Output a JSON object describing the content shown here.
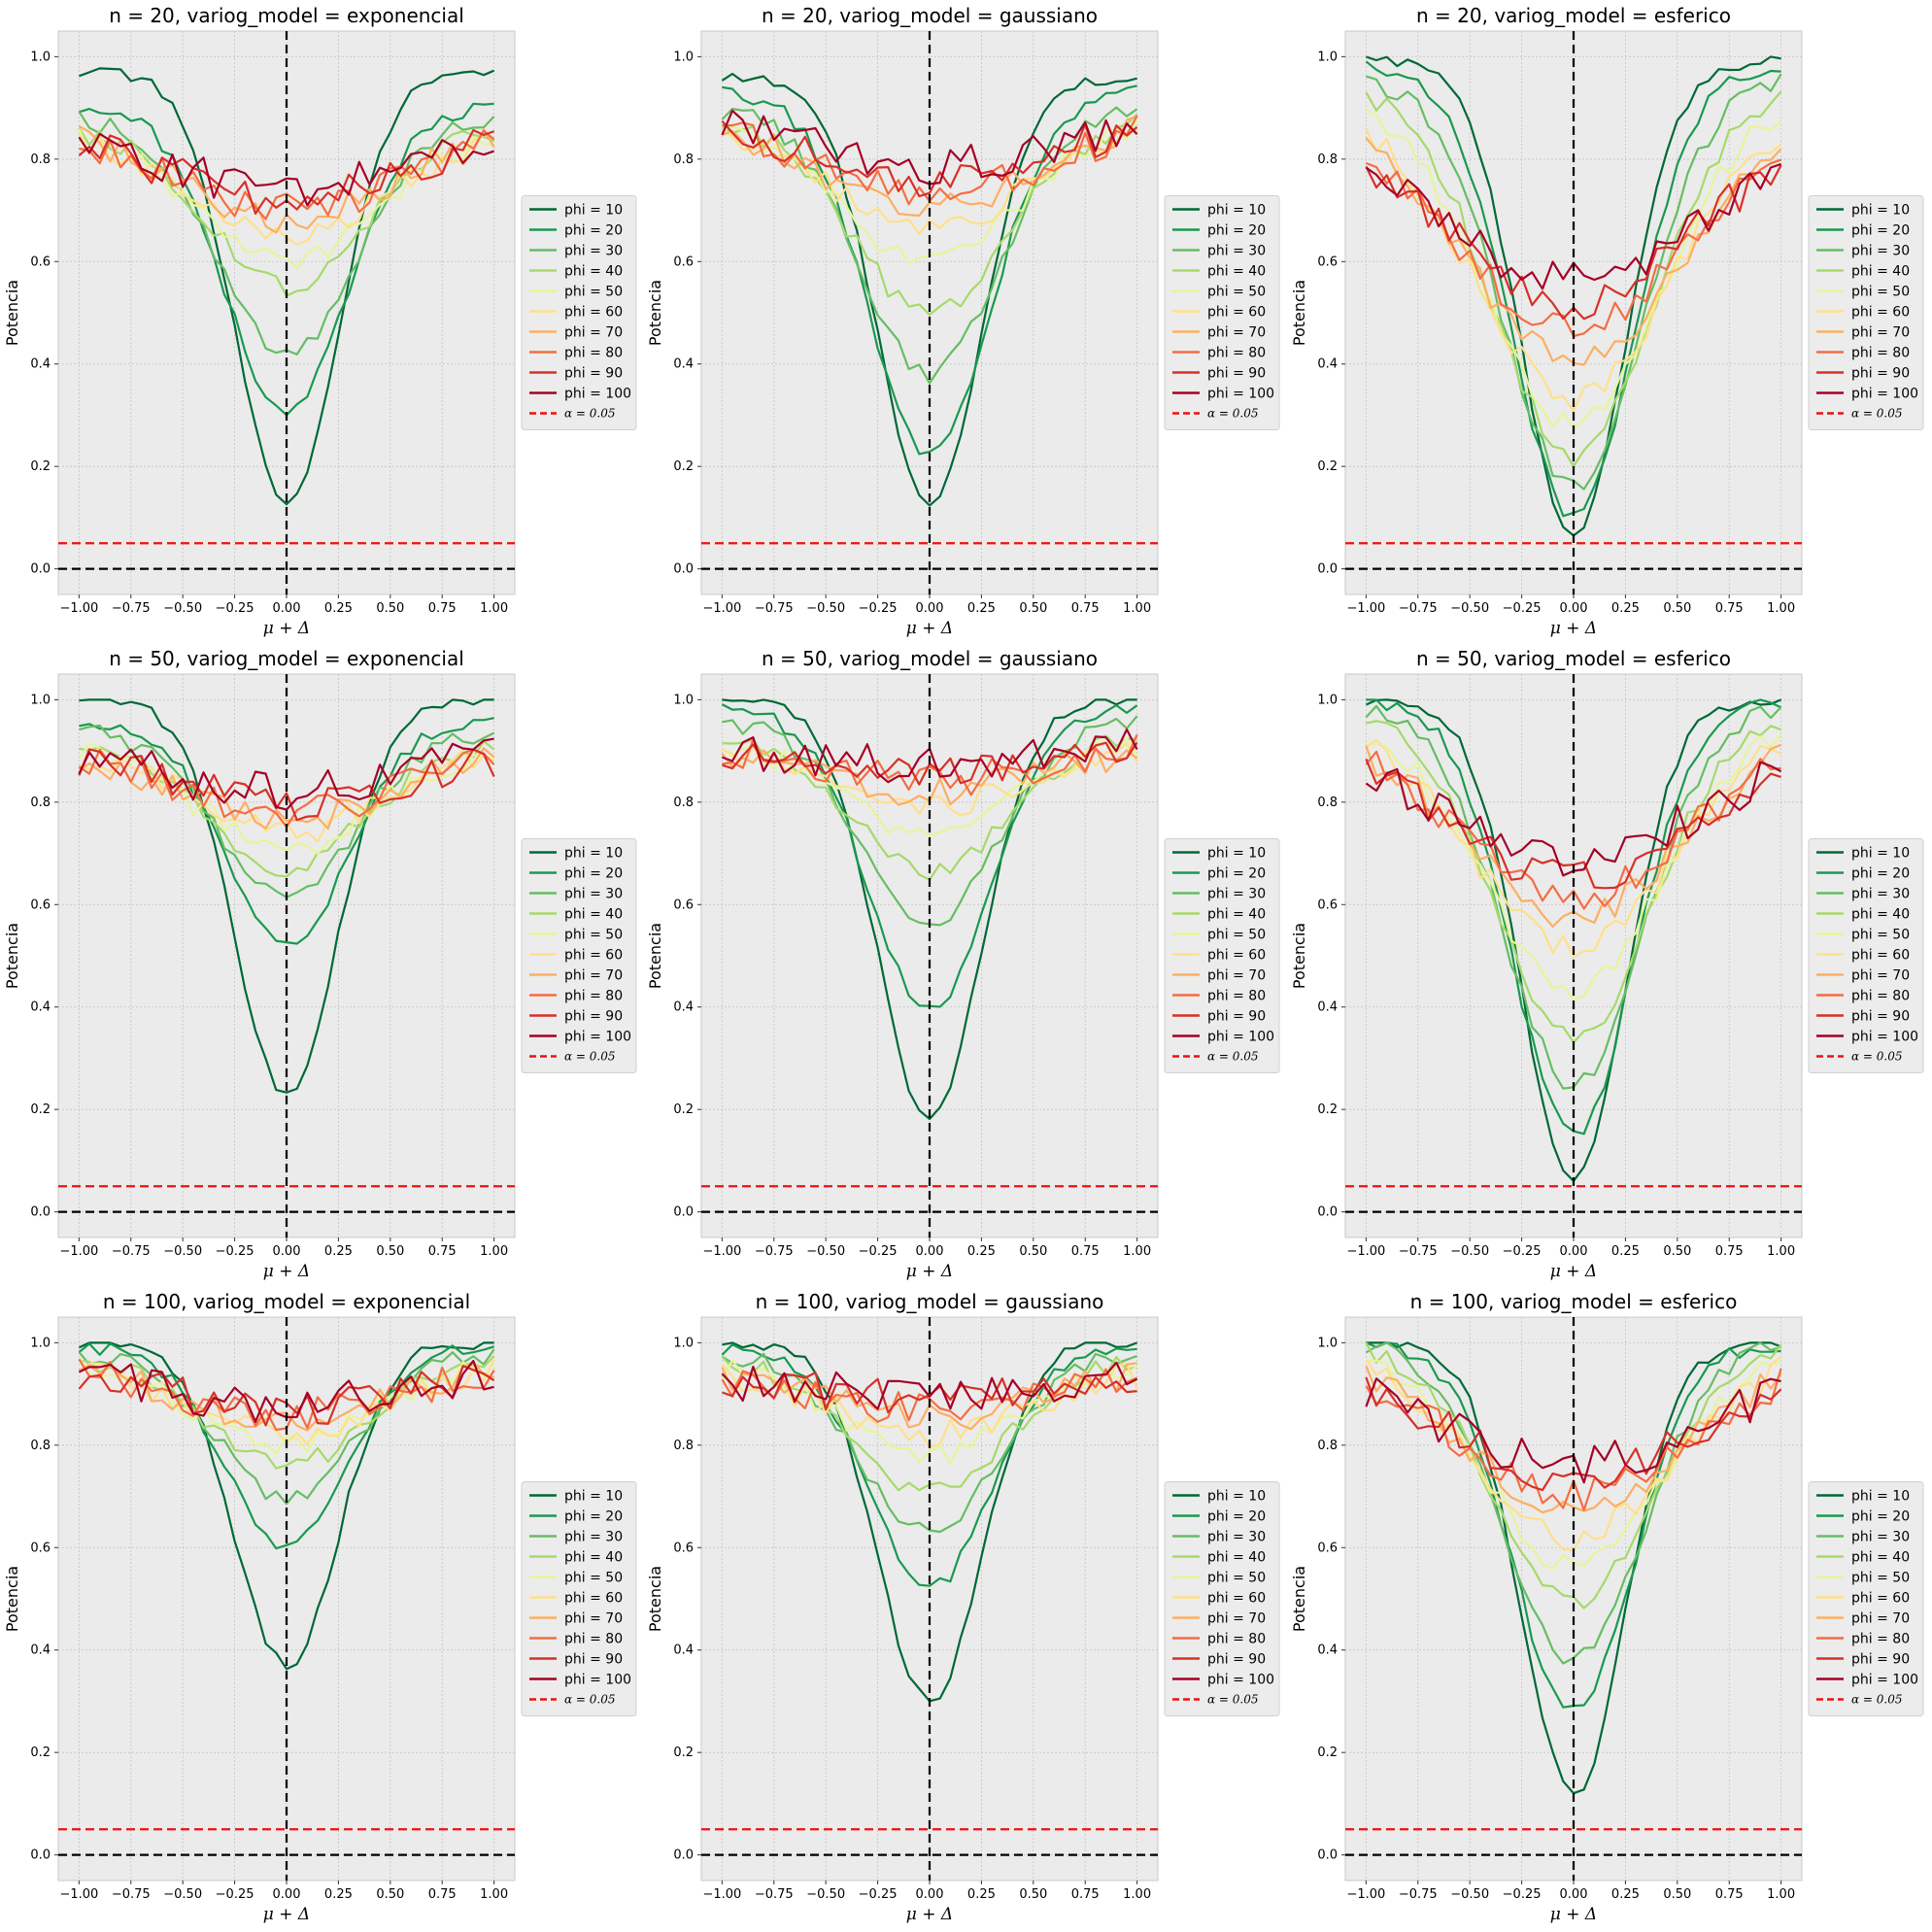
{
  "figure": {
    "ylabel": "Potencia",
    "xlabel": "μ + Δ"
  },
  "chart_data": {
    "type": "line",
    "layout": "3x3 grid of line charts",
    "x_range": [
      -1.0,
      1.0
    ],
    "x_step": 0.05,
    "xlim": [
      -1.1,
      1.1
    ],
    "ylim": [
      -0.05,
      1.05
    ],
    "xticks": [
      -1.0,
      -0.75,
      -0.5,
      -0.25,
      0.0,
      0.25,
      0.5,
      0.75,
      1.0
    ],
    "xtick_labels": [
      "−1.00",
      "−0.75",
      "−0.50",
      "−0.25",
      "0.00",
      "0.25",
      "0.50",
      "0.75",
      "1.00"
    ],
    "yticks": [
      0.0,
      0.2,
      0.4,
      0.6,
      0.8,
      1.0
    ],
    "ytick_labels": [
      "0.0",
      "0.2",
      "0.4",
      "0.6",
      "0.8",
      "1.0"
    ],
    "grid": true,
    "legend_position": "outside right, vertically centered",
    "alpha_line": {
      "y": 0.05,
      "label": "α = 0.05",
      "color": "#ee1111",
      "style": "dashed"
    },
    "reference_lines": [
      {
        "orientation": "horizontal",
        "value": 0.0,
        "color": "#000000",
        "style": "dashed"
      },
      {
        "orientation": "vertical",
        "value": 0.0,
        "color": "#000000",
        "style": "dashed"
      }
    ],
    "series_names": [
      "phi = 10",
      "phi = 20",
      "phi = 30",
      "phi = 40",
      "phi = 50",
      "phi = 60",
      "phi = 70",
      "phi = 80",
      "phi = 90",
      "phi = 100"
    ],
    "series_colors": [
      "#006837",
      "#1a9850",
      "#66bd63",
      "#a6d96a",
      "#e6f598",
      "#fee08b",
      "#fdae61",
      "#f46d43",
      "#d73027",
      "#a50026"
    ],
    "panels": [
      {
        "title": "n = 20, variog_model = exponencial",
        "min_power": [
          0.13,
          0.3,
          0.42,
          0.55,
          0.6,
          0.65,
          0.68,
          0.7,
          0.72,
          0.74
        ],
        "edge_power": [
          0.97,
          0.9,
          0.88,
          0.86,
          0.85,
          0.85,
          0.86,
          0.86,
          0.87,
          0.88
        ]
      },
      {
        "title": "n = 20, variog_model = gaussiano",
        "min_power": [
          0.12,
          0.22,
          0.38,
          0.5,
          0.6,
          0.66,
          0.7,
          0.73,
          0.76,
          0.79
        ],
        "edge_power": [
          0.96,
          0.93,
          0.9,
          0.88,
          0.87,
          0.87,
          0.88,
          0.88,
          0.89,
          0.89
        ]
      },
      {
        "title": "n = 20, variog_model = esferico",
        "min_power": [
          0.06,
          0.1,
          0.16,
          0.22,
          0.28,
          0.33,
          0.4,
          0.47,
          0.52,
          0.56
        ],
        "edge_power": [
          0.99,
          0.98,
          0.96,
          0.94,
          0.92,
          0.9,
          0.89,
          0.88,
          0.87,
          0.85
        ]
      },
      {
        "title": "n = 50, variog_model = exponencial",
        "min_power": [
          0.23,
          0.52,
          0.62,
          0.67,
          0.71,
          0.74,
          0.76,
          0.78,
          0.8,
          0.82
        ],
        "edge_power": [
          1.0,
          0.96,
          0.94,
          0.92,
          0.91,
          0.91,
          0.91,
          0.91,
          0.91,
          0.92
        ]
      },
      {
        "title": "n = 50, variog_model = gaussiano",
        "min_power": [
          0.18,
          0.4,
          0.57,
          0.66,
          0.74,
          0.79,
          0.82,
          0.84,
          0.85,
          0.87
        ],
        "edge_power": [
          1.0,
          0.98,
          0.96,
          0.94,
          0.92,
          0.91,
          0.91,
          0.92,
          0.92,
          0.92
        ]
      },
      {
        "title": "n = 50, variog_model = esferico",
        "min_power": [
          0.06,
          0.15,
          0.25,
          0.34,
          0.43,
          0.51,
          0.57,
          0.61,
          0.65,
          0.69
        ],
        "edge_power": [
          1.0,
          1.0,
          0.99,
          0.98,
          0.96,
          0.95,
          0.94,
          0.94,
          0.93,
          0.93
        ]
      },
      {
        "title": "n = 100, variog_model = exponencial",
        "min_power": [
          0.37,
          0.6,
          0.7,
          0.76,
          0.8,
          0.82,
          0.84,
          0.86,
          0.87,
          0.88
        ],
        "edge_power": [
          1.0,
          0.99,
          0.98,
          0.97,
          0.96,
          0.96,
          0.96,
          0.96,
          0.96,
          0.96
        ]
      },
      {
        "title": "n = 100, variog_model = gaussiano",
        "min_power": [
          0.3,
          0.52,
          0.63,
          0.71,
          0.78,
          0.82,
          0.85,
          0.87,
          0.89,
          0.9
        ],
        "edge_power": [
          1.0,
          0.99,
          0.98,
          0.97,
          0.96,
          0.95,
          0.95,
          0.94,
          0.94,
          0.94
        ]
      },
      {
        "title": "n = 100, variog_model = esferico",
        "min_power": [
          0.12,
          0.28,
          0.38,
          0.49,
          0.56,
          0.62,
          0.67,
          0.7,
          0.74,
          0.76
        ],
        "edge_power": [
          1.0,
          1.0,
          1.0,
          1.0,
          0.99,
          0.98,
          0.97,
          0.97,
          0.96,
          0.96
        ]
      }
    ]
  }
}
